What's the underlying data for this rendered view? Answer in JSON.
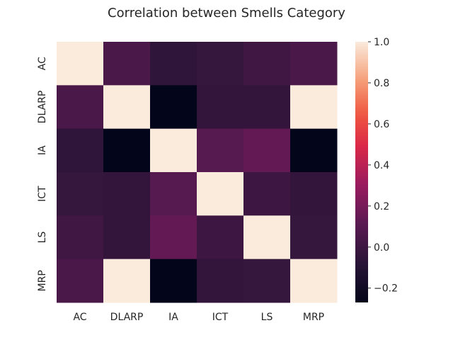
{
  "chart_data": {
    "type": "heatmap",
    "title": "Correlation between Smells Category",
    "xlabel": "",
    "ylabel": "",
    "x_categories": [
      "AC",
      "DLARP",
      "IA",
      "ICT",
      "LS",
      "MRP"
    ],
    "y_categories": [
      "AC",
      "DLARP",
      "IA",
      "ICT",
      "LS",
      "MRP"
    ],
    "values": [
      [
        1.0,
        0.05,
        -0.06,
        -0.03,
        0.01,
        0.05
      ],
      [
        0.05,
        1.0,
        -0.27,
        -0.04,
        -0.04,
        1.0
      ],
      [
        -0.06,
        -0.27,
        1.0,
        0.1,
        0.14,
        -0.27
      ],
      [
        -0.03,
        -0.04,
        0.1,
        1.0,
        0.0,
        -0.04
      ],
      [
        0.01,
        -0.04,
        0.14,
        0.0,
        1.0,
        -0.03
      ],
      [
        0.05,
        1.0,
        -0.27,
        -0.04,
        -0.03,
        1.0
      ]
    ],
    "vmin": -0.27,
    "vmax": 1.0,
    "colormap": "rocket",
    "colorbar": {
      "ticks": [
        -0.2,
        0.0,
        0.2,
        0.4,
        0.6,
        0.8,
        1.0
      ],
      "tick_labels": [
        "−0.2",
        "0.0",
        "0.2",
        "0.4",
        "0.6",
        "0.8",
        "1.0"
      ],
      "position": "right"
    },
    "grid": false
  }
}
